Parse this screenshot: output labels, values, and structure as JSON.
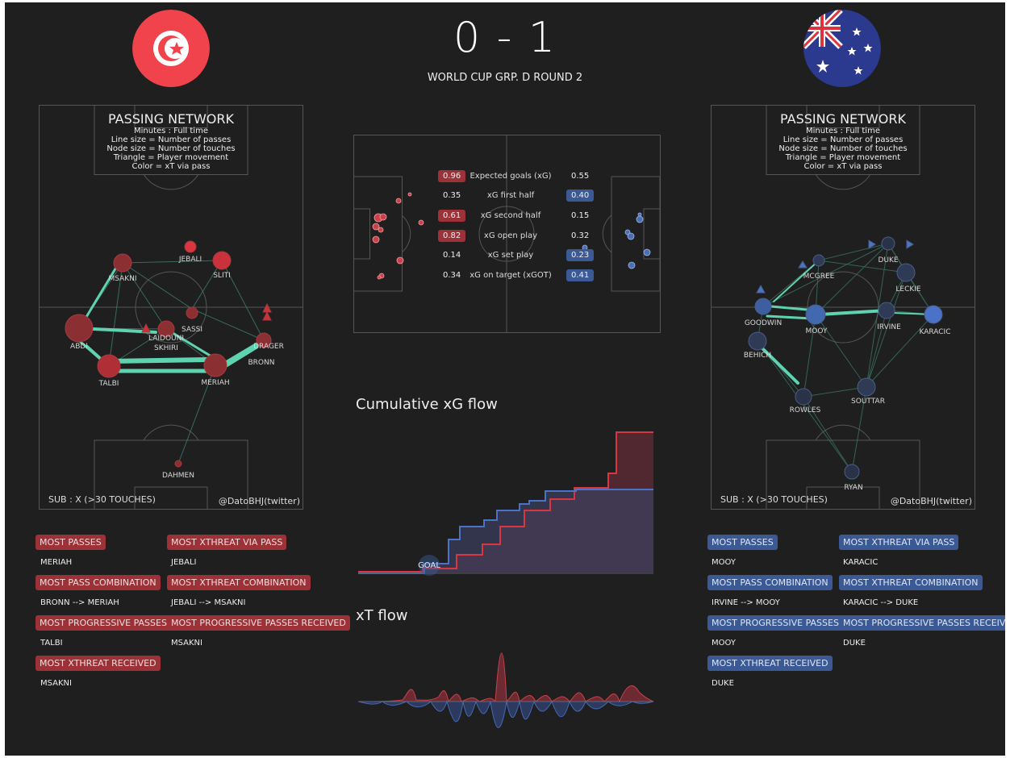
{
  "score": "0 - 1",
  "subtitle": "WORLD CUP GRP. D ROUND 2",
  "colors": {
    "home": "#d9534f",
    "away": "#4a6fb5",
    "accent": "#5fd3b0",
    "bg": "#1f1f1f"
  },
  "home": {
    "team_flag": "tunisia-flag-icon",
    "network": {
      "title": "PASSING NETWORK",
      "legend": [
        "Minutes : Full time",
        "Line size = Number of passes",
        "Node size = Number of touches",
        "Triangle = Player movement",
        "Color = xT via pass"
      ],
      "sub": "SUB : X (>30 TOUCHES)",
      "credit": "@DatoBHJ(twitter)",
      "players": [
        "JEBALI",
        "SLITI",
        "MSAKNI",
        "SASSI",
        "LAIDOUNI",
        "SKHIRI",
        "ABDI",
        "DRAGER",
        "BRONN",
        "TALBI",
        "MERIAH",
        "DAHMEN"
      ]
    },
    "highlights": [
      {
        "label": "MOST PASSES",
        "value": "MERIAH"
      },
      {
        "label": "MOST PASS COMBINATION",
        "value": "BRONN --> MERIAH"
      },
      {
        "label": "MOST PROGRESSIVE PASSES",
        "value": "TALBI"
      },
      {
        "label": "MOST XTHREAT RECEIVED",
        "value": "MSAKNI"
      },
      {
        "label": "MOST XTHREAT VIA PASS",
        "value": "JEBALI"
      },
      {
        "label": "MOST XTHREAT COMBINATION",
        "value": "JEBALI --> MSAKNI"
      },
      {
        "label": "MOST PROGRESSIVE PASSES RECEIVED",
        "value": "MSAKNI"
      }
    ]
  },
  "away": {
    "team_flag": "australia-flag-icon",
    "network": {
      "title": "PASSING NETWORK",
      "legend": [
        "Minutes : Full time",
        "Line size = Number of passes",
        "Node size = Number of touches",
        "Triangle = Player movement",
        "Color = xT via pass"
      ],
      "sub": "SUB : X (>30 TOUCHES)",
      "credit": "@DatoBHJ(twitter)",
      "players": [
        "DUKE",
        "MCGREE",
        "LECKIE",
        "GOODWIN",
        "MOOY",
        "IRVINE",
        "KARACIC",
        "BEHICH",
        "SOUTTAR",
        "ROWLES",
        "RYAN"
      ]
    },
    "highlights": [
      {
        "label": "MOST PASSES",
        "value": "MOOY"
      },
      {
        "label": "MOST PASS COMBINATION",
        "value": "IRVINE --> MOOY"
      },
      {
        "label": "MOST PROGRESSIVE PASSES",
        "value": "MOOY"
      },
      {
        "label": "MOST XTHREAT RECEIVED",
        "value": "DUKE"
      },
      {
        "label": "MOST XTHREAT VIA PASS",
        "value": "KARACIC"
      },
      {
        "label": "MOST XTHREAT COMBINATION",
        "value": "KARACIC --> DUKE"
      },
      {
        "label": "MOST PROGRESSIVE PASSES RECEIVED",
        "value": "DUKE"
      }
    ]
  },
  "stats": [
    {
      "home": "0.96",
      "label": "Expected goals (xG)",
      "away": "0.55",
      "highlight": "home"
    },
    {
      "home": "0.35",
      "label": "xG first half",
      "away": "0.40",
      "highlight": "away"
    },
    {
      "home": "0.61",
      "label": "xG second half",
      "away": "0.15",
      "highlight": "home"
    },
    {
      "home": "0.82",
      "label": "xG open play",
      "away": "0.32",
      "highlight": "home"
    },
    {
      "home": "0.14",
      "label": "xG set play",
      "away": "0.23",
      "highlight": "away"
    },
    {
      "home": "0.34",
      "label": "xG on target (xGOT)",
      "away": "0.41",
      "highlight": "away"
    }
  ],
  "xg_flow": {
    "title": "Cumulative xG flow",
    "goal_label": "GOAL"
  },
  "xt_flow": {
    "title": "xT flow"
  }
}
